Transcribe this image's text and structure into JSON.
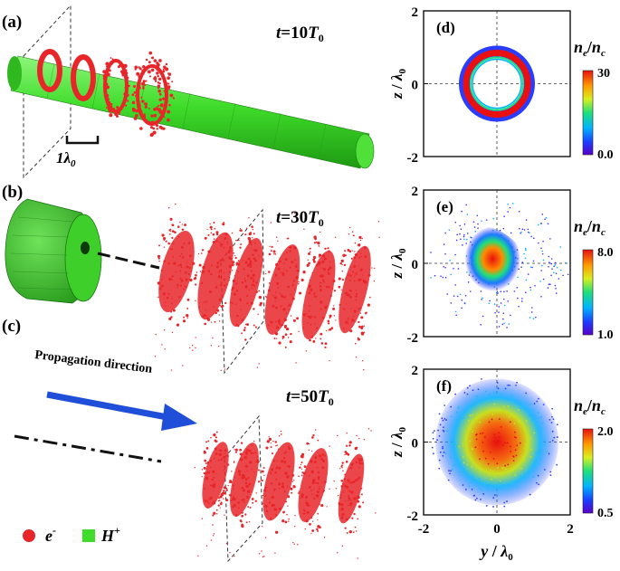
{
  "panels": {
    "a": {
      "label": "(a)",
      "time": "t=10T0",
      "time_var": "t",
      "time_num": "=10",
      "time_T": "T",
      "time_sub": "0",
      "scale_label": "1λ",
      "scale_label_sub": "0"
    },
    "b": {
      "label": "(b)",
      "time_var": "t",
      "time_num": "=30",
      "time_T": "T",
      "time_sub": "0"
    },
    "c": {
      "label": "(c)",
      "time_var": "t",
      "time_num": "=50",
      "time_T": "T",
      "time_sub": "0",
      "propagation_label": "Propagation direction"
    },
    "d": {
      "label": "(d)",
      "colorbar_max": "30",
      "colorbar_min": "0.0"
    },
    "e": {
      "label": "(e)",
      "colorbar_max": "8.0",
      "colorbar_min": "1.0"
    },
    "f": {
      "label": "(f)",
      "colorbar_max": "2.0",
      "colorbar_min": "0.5"
    }
  },
  "legend": {
    "electron": "e",
    "electron_sup": "-",
    "proton": "H",
    "proton_sup": "+"
  },
  "density_label": {
    "n": "n",
    "e": "e",
    "slash": "/",
    "n2": "n",
    "c": "c"
  },
  "axis": {
    "z": "z",
    "y": "y",
    "slash": " / ",
    "lambda": "λ",
    "lambda_sub": "0",
    "ticks_v": [
      "2",
      "0",
      "-2"
    ],
    "ticks_x": [
      "-2",
      "0",
      "2"
    ]
  },
  "colors": {
    "electron": "#e8262a",
    "proton": "#3fdc2a",
    "arrow": "#1f4fd8"
  }
}
